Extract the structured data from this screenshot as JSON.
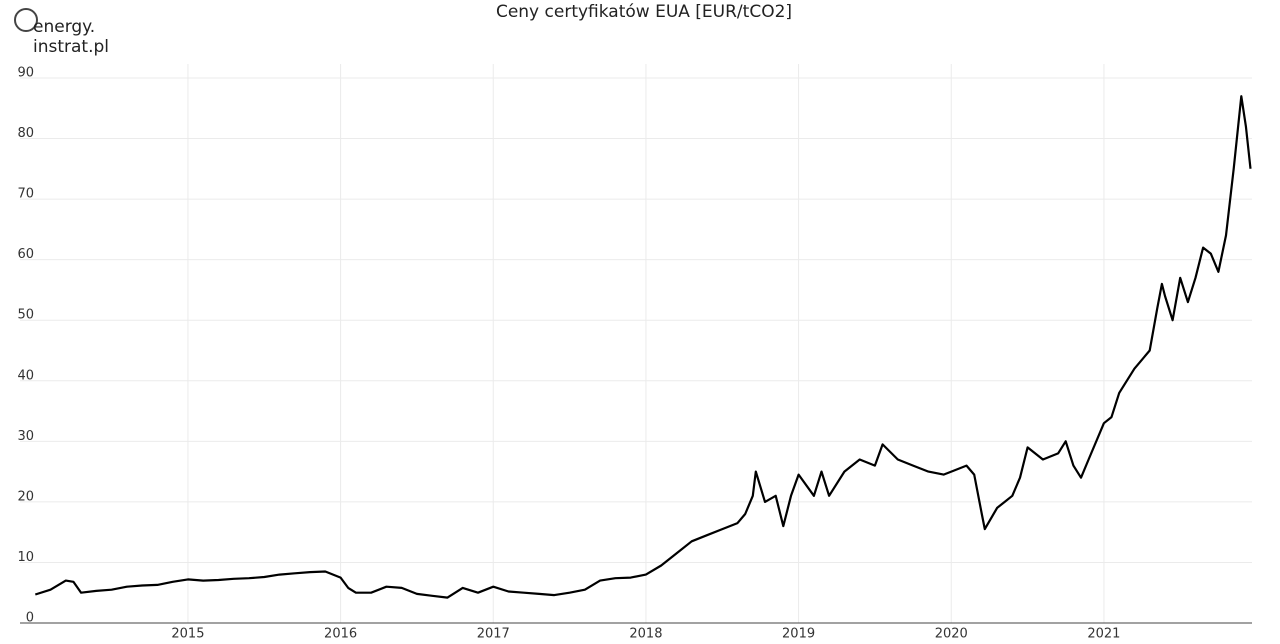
{
  "logo": {
    "line1": "energy.",
    "line2": "instrat.pl"
  },
  "chart_data": {
    "type": "line",
    "title": "Ceny certyfikatów EUA [EUR/tCO2]",
    "x": [
      2014.0,
      2014.1,
      2014.2,
      2014.25,
      2014.3,
      2014.4,
      2014.5,
      2014.6,
      2014.7,
      2014.8,
      2014.9,
      2015.0,
      2015.1,
      2015.2,
      2015.3,
      2015.4,
      2015.5,
      2015.6,
      2015.7,
      2015.8,
      2015.9,
      2016.0,
      2016.05,
      2016.1,
      2016.2,
      2016.3,
      2016.4,
      2016.5,
      2016.6,
      2016.7,
      2016.8,
      2016.9,
      2017.0,
      2017.1,
      2017.2,
      2017.3,
      2017.4,
      2017.5,
      2017.6,
      2017.7,
      2017.8,
      2017.9,
      2018.0,
      2018.1,
      2018.2,
      2018.3,
      2018.4,
      2018.5,
      2018.6,
      2018.65,
      2018.7,
      2018.72,
      2018.78,
      2018.85,
      2018.9,
      2018.95,
      2019.0,
      2019.1,
      2019.15,
      2019.2,
      2019.3,
      2019.4,
      2019.5,
      2019.55,
      2019.65,
      2019.75,
      2019.85,
      2019.95,
      2020.0,
      2020.1,
      2020.15,
      2020.2,
      2020.22,
      2020.3,
      2020.35,
      2020.4,
      2020.45,
      2020.5,
      2020.6,
      2020.7,
      2020.75,
      2020.8,
      2020.85,
      2020.9,
      2021.0,
      2021.05,
      2021.1,
      2021.15,
      2021.2,
      2021.3,
      2021.35,
      2021.38,
      2021.4,
      2021.45,
      2021.5,
      2021.55,
      2021.6,
      2021.65,
      2021.7,
      2021.75,
      2021.8,
      2021.85,
      2021.9,
      2021.93,
      2021.96
    ],
    "series": [
      {
        "name": "EUA",
        "color": "#000000",
        "values": [
          4.7,
          5.5,
          7.0,
          6.8,
          5.0,
          5.3,
          5.5,
          6.0,
          6.2,
          6.3,
          6.8,
          7.2,
          7.0,
          7.1,
          7.3,
          7.4,
          7.6,
          8.0,
          8.2,
          8.4,
          8.5,
          7.5,
          5.8,
          5.0,
          5.0,
          6.0,
          5.8,
          4.8,
          4.5,
          4.2,
          5.8,
          5.0,
          6.0,
          5.2,
          5.0,
          4.8,
          4.6,
          5.0,
          5.5,
          7.0,
          7.4,
          7.5,
          8.0,
          9.5,
          11.5,
          13.5,
          14.5,
          15.5,
          16.5,
          18,
          21,
          25,
          20,
          21,
          16,
          21,
          24.5,
          21,
          25,
          21,
          25,
          27,
          26,
          29.5,
          27,
          26,
          25,
          24.5,
          25,
          26,
          24.5,
          18,
          15.5,
          19,
          20,
          21,
          24,
          29,
          27,
          28,
          30,
          26,
          24,
          27,
          33,
          34,
          38,
          40,
          42,
          45,
          52,
          56,
          54,
          50,
          57,
          53,
          57,
          62,
          61,
          58,
          64,
          75,
          87,
          82,
          75
        ]
      }
    ],
    "xlim": [
      2013.9,
      2021.97
    ],
    "xticks": [
      2015,
      2016,
      2017,
      2018,
      2019,
      2020,
      2021
    ],
    "ylim": [
      0,
      90
    ],
    "yticks": [
      0,
      10,
      20,
      30,
      40,
      50,
      60,
      70,
      80,
      90
    ],
    "grid": true
  }
}
